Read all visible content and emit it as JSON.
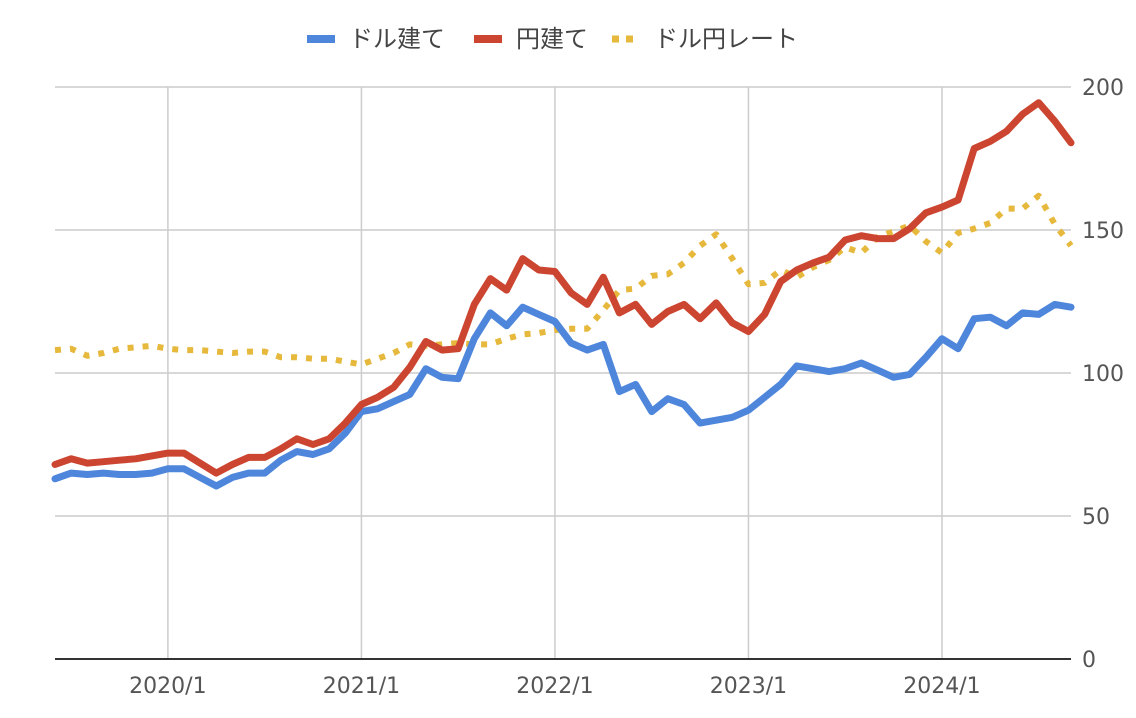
{
  "chart_data": {
    "type": "line",
    "title": "",
    "xlabel": "",
    "ylabel": "",
    "x_tick_labels": [
      "2020/1",
      "2021/1",
      "2022/1",
      "2023/1",
      "2024/1"
    ],
    "x_tick_months": [
      "2020-01",
      "2021-01",
      "2022-01",
      "2023-01",
      "2024-01"
    ],
    "x_range": [
      "2019-06",
      "2024-08"
    ],
    "ylim": [
      0,
      200
    ],
    "y_ticks": [
      0,
      50,
      100,
      150,
      200
    ],
    "y_axis_side": "right",
    "grid": true,
    "legend_position": "top",
    "series": [
      {
        "name": "ドル建て",
        "color": "#4e86dc",
        "style": "solid",
        "points": [
          [
            "2019-06",
            63
          ],
          [
            "2019-07",
            65
          ],
          [
            "2019-08",
            64.5
          ],
          [
            "2019-09",
            65
          ],
          [
            "2019-10",
            64.5
          ],
          [
            "2019-11",
            64.5
          ],
          [
            "2019-12",
            65
          ],
          [
            "2020-01",
            66.5
          ],
          [
            "2020-02",
            66.5
          ],
          [
            "2020-03",
            63.5
          ],
          [
            "2020-04",
            60.5
          ],
          [
            "2020-05",
            63.5
          ],
          [
            "2020-06",
            65
          ],
          [
            "2020-07",
            65
          ],
          [
            "2020-08",
            69.5
          ],
          [
            "2020-09",
            72.5
          ],
          [
            "2020-10",
            71.5
          ],
          [
            "2020-11",
            73.5
          ],
          [
            "2020-12",
            79
          ],
          [
            "2021-01",
            86.5
          ],
          [
            "2021-02",
            87.5
          ],
          [
            "2021-03",
            90
          ],
          [
            "2021-04",
            92.5
          ],
          [
            "2021-05",
            101.5
          ],
          [
            "2021-06",
            98.5
          ],
          [
            "2021-07",
            98
          ],
          [
            "2021-08",
            112
          ],
          [
            "2021-09",
            121
          ],
          [
            "2021-10",
            116.5
          ],
          [
            "2021-11",
            123
          ],
          [
            "2021-12",
            120.5
          ],
          [
            "2022-01",
            118
          ],
          [
            "2022-02",
            110.5
          ],
          [
            "2022-03",
            108
          ],
          [
            "2022-04",
            110
          ],
          [
            "2022-05",
            93.5
          ],
          [
            "2022-06",
            96
          ],
          [
            "2022-07",
            86.5
          ],
          [
            "2022-08",
            91
          ],
          [
            "2022-09",
            89
          ],
          [
            "2022-10",
            82.5
          ],
          [
            "2022-11",
            83.5
          ],
          [
            "2022-12",
            84.5
          ],
          [
            "2023-01",
            87
          ],
          [
            "2023-02",
            91.5
          ],
          [
            "2023-03",
            96
          ],
          [
            "2023-04",
            102.5
          ],
          [
            "2023-05",
            101.5
          ],
          [
            "2023-06",
            100.5
          ],
          [
            "2023-07",
            101.5
          ],
          [
            "2023-08",
            103.5
          ],
          [
            "2023-09",
            101
          ],
          [
            "2023-10",
            98.5
          ],
          [
            "2023-11",
            99.5
          ],
          [
            "2023-12",
            105.5
          ],
          [
            "2024-01",
            112
          ],
          [
            "2024-02",
            108.5
          ],
          [
            "2024-03",
            119
          ],
          [
            "2024-04",
            119.5
          ],
          [
            "2024-05",
            116.5
          ],
          [
            "2024-06",
            121
          ],
          [
            "2024-07",
            120.5
          ],
          [
            "2024-08",
            124
          ],
          [
            "2024-09",
            123
          ]
        ]
      },
      {
        "name": "円建て",
        "color": "#cc4530",
        "style": "solid",
        "points": [
          [
            "2019-06",
            68
          ],
          [
            "2019-07",
            70
          ],
          [
            "2019-08",
            68.5
          ],
          [
            "2019-09",
            69
          ],
          [
            "2019-10",
            69.5
          ],
          [
            "2019-11",
            70
          ],
          [
            "2019-12",
            71
          ],
          [
            "2020-01",
            72
          ],
          [
            "2020-02",
            72
          ],
          [
            "2020-03",
            68.5
          ],
          [
            "2020-04",
            65
          ],
          [
            "2020-05",
            68
          ],
          [
            "2020-06",
            70.5
          ],
          [
            "2020-07",
            70.5
          ],
          [
            "2020-08",
            73.5
          ],
          [
            "2020-09",
            77
          ],
          [
            "2020-10",
            75
          ],
          [
            "2020-11",
            77
          ],
          [
            "2020-12",
            82.5
          ],
          [
            "2021-01",
            89
          ],
          [
            "2021-02",
            91.5
          ],
          [
            "2021-03",
            95
          ],
          [
            "2021-04",
            102
          ],
          [
            "2021-05",
            111
          ],
          [
            "2021-06",
            108
          ],
          [
            "2021-07",
            108.5
          ],
          [
            "2021-08",
            124
          ],
          [
            "2021-09",
            133
          ],
          [
            "2021-10",
            129
          ],
          [
            "2021-11",
            140
          ],
          [
            "2021-12",
            136
          ],
          [
            "2022-01",
            135.5
          ],
          [
            "2022-02",
            128
          ],
          [
            "2022-03",
            124
          ],
          [
            "2022-04",
            133.5
          ],
          [
            "2022-05",
            121
          ],
          [
            "2022-06",
            124
          ],
          [
            "2022-07",
            117
          ],
          [
            "2022-08",
            121.5
          ],
          [
            "2022-09",
            124
          ],
          [
            "2022-10",
            119
          ],
          [
            "2022-11",
            124.5
          ],
          [
            "2022-12",
            117.5
          ],
          [
            "2023-01",
            114.5
          ],
          [
            "2023-02",
            120.5
          ],
          [
            "2023-03",
            132
          ],
          [
            "2023-04",
            136
          ],
          [
            "2023-05",
            138.5
          ],
          [
            "2023-06",
            140.5
          ],
          [
            "2023-07",
            146.5
          ],
          [
            "2023-08",
            148
          ],
          [
            "2023-09",
            147
          ],
          [
            "2023-10",
            147
          ],
          [
            "2023-11",
            150.5
          ],
          [
            "2023-12",
            156
          ],
          [
            "2024-01",
            158
          ],
          [
            "2024-02",
            160.5
          ],
          [
            "2024-03",
            178.5
          ],
          [
            "2024-04",
            181
          ],
          [
            "2024-05",
            184.5
          ],
          [
            "2024-06",
            190.5
          ],
          [
            "2024-07",
            194.5
          ],
          [
            "2024-08",
            188
          ],
          [
            "2024-09",
            180.5
          ]
        ]
      },
      {
        "name": "ドル円レート",
        "color": "#e6b83c",
        "style": "dotted",
        "points": [
          [
            "2019-06",
            108
          ],
          [
            "2019-07",
            108.5
          ],
          [
            "2019-08",
            106
          ],
          [
            "2019-09",
            107
          ],
          [
            "2019-10",
            108.5
          ],
          [
            "2019-11",
            109
          ],
          [
            "2019-12",
            109.5
          ],
          [
            "2020-01",
            108.5
          ],
          [
            "2020-02",
            108
          ],
          [
            "2020-03",
            108
          ],
          [
            "2020-04",
            107.5
          ],
          [
            "2020-05",
            107
          ],
          [
            "2020-06",
            107.5
          ],
          [
            "2020-07",
            107.5
          ],
          [
            "2020-08",
            105.5
          ],
          [
            "2020-09",
            105.5
          ],
          [
            "2020-10",
            105
          ],
          [
            "2020-11",
            105
          ],
          [
            "2020-12",
            104
          ],
          [
            "2021-01",
            103
          ],
          [
            "2021-02",
            105
          ],
          [
            "2021-03",
            107
          ],
          [
            "2021-04",
            110
          ],
          [
            "2021-05",
            109.5
          ],
          [
            "2021-06",
            110
          ],
          [
            "2021-07",
            110.5
          ],
          [
            "2021-08",
            110
          ],
          [
            "2021-09",
            110
          ],
          [
            "2021-10",
            112
          ],
          [
            "2021-11",
            113.5
          ],
          [
            "2021-12",
            114
          ],
          [
            "2022-01",
            115
          ],
          [
            "2022-02",
            115.5
          ],
          [
            "2022-03",
            115.5
          ],
          [
            "2022-04",
            122
          ],
          [
            "2022-05",
            129
          ],
          [
            "2022-06",
            129.5
          ],
          [
            "2022-07",
            134
          ],
          [
            "2022-08",
            134.5
          ],
          [
            "2022-09",
            138.5
          ],
          [
            "2022-10",
            144.5
          ],
          [
            "2022-11",
            148.5
          ],
          [
            "2022-12",
            140
          ],
          [
            "2023-01",
            131
          ],
          [
            "2023-02",
            131.5
          ],
          [
            "2023-03",
            136
          ],
          [
            "2023-04",
            133.5
          ],
          [
            "2023-05",
            137
          ],
          [
            "2023-06",
            139.5
          ],
          [
            "2023-07",
            144
          ],
          [
            "2023-08",
            142
          ],
          [
            "2023-09",
            147.5
          ],
          [
            "2023-10",
            149.5
          ],
          [
            "2023-11",
            151.5
          ],
          [
            "2023-12",
            146
          ],
          [
            "2024-01",
            142
          ],
          [
            "2024-02",
            149
          ],
          [
            "2024-03",
            150.5
          ],
          [
            "2024-04",
            152.5
          ],
          [
            "2024-05",
            157.5
          ],
          [
            "2024-06",
            157.5
          ],
          [
            "2024-07",
            162
          ],
          [
            "2024-08",
            152
          ],
          [
            "2024-09",
            144.5
          ]
        ]
      }
    ]
  }
}
